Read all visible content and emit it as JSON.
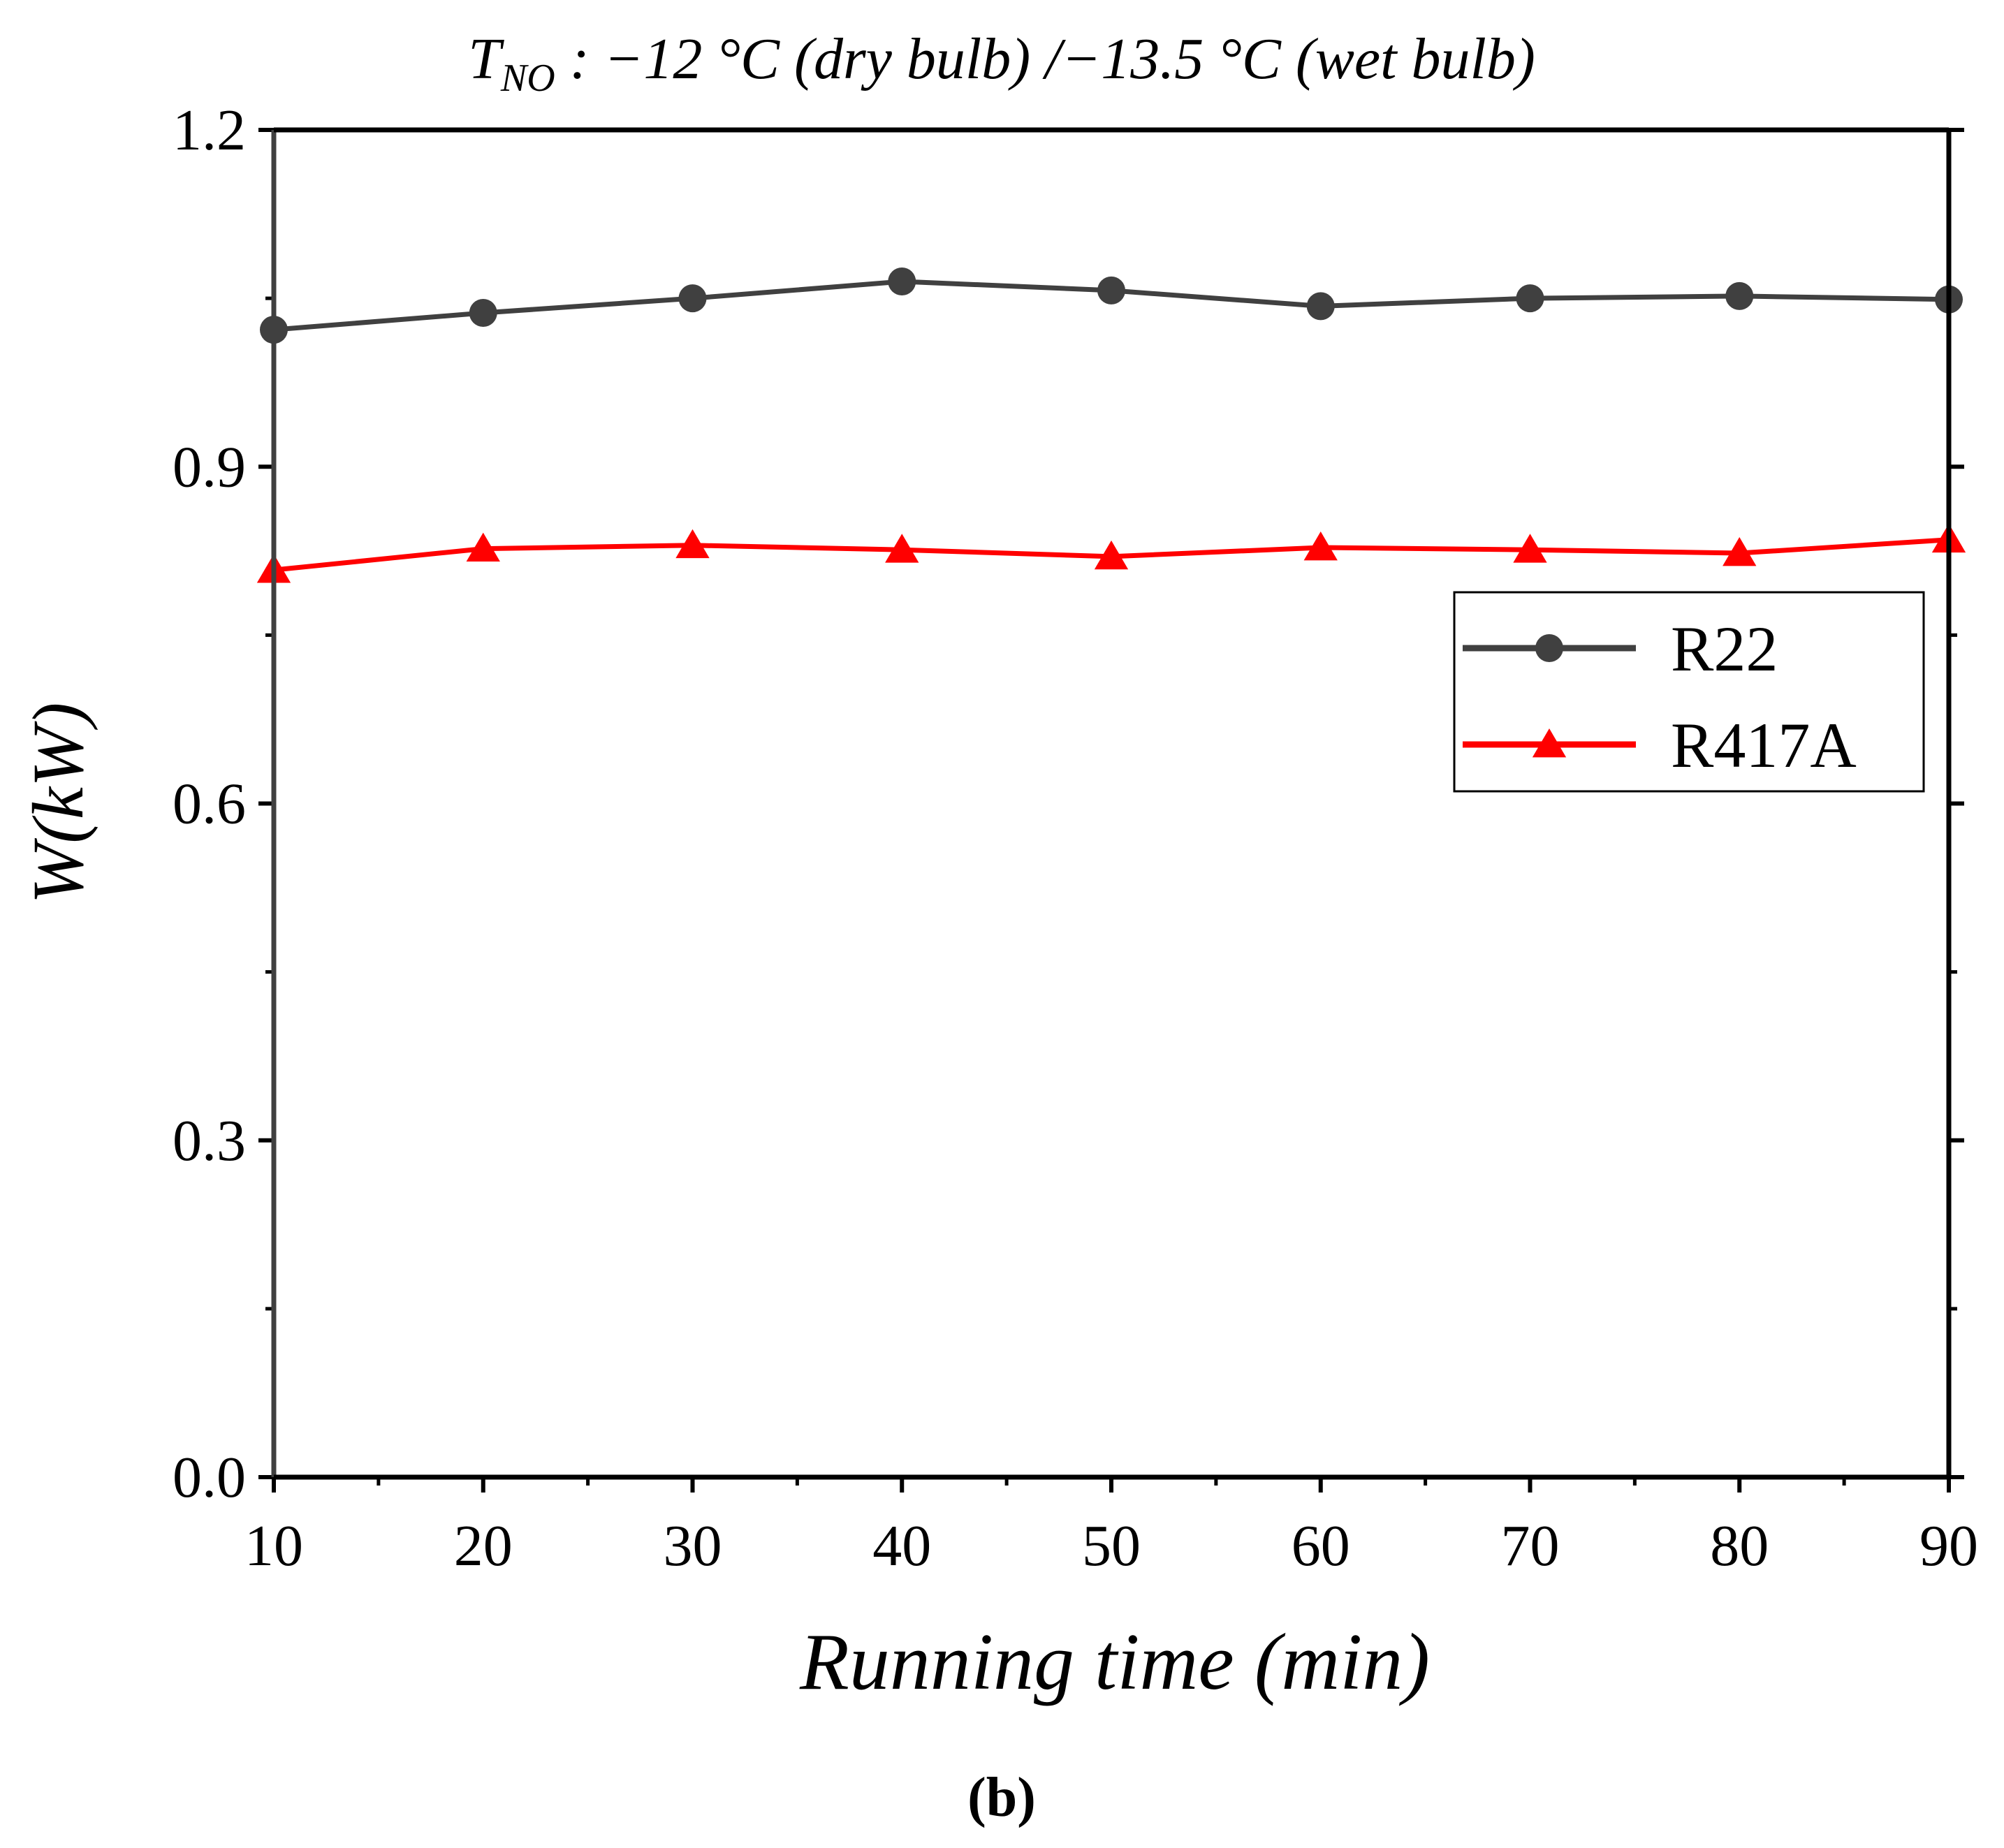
{
  "chart_data": {
    "type": "line",
    "title_parts": {
      "main": "T",
      "sub": "NO",
      "rest": " : −12 °C (dry bulb) /−13.5 °C (wet bulb)"
    },
    "xlabel": "Running time (min)",
    "ylabel": "W(kW)",
    "caption": "(b)",
    "x": [
      10,
      20,
      30,
      40,
      50,
      60,
      70,
      80,
      90
    ],
    "xlim": [
      10,
      90
    ],
    "ylim": [
      0,
      1.2
    ],
    "xticks": [
      "10",
      "20",
      "30",
      "40",
      "50",
      "60",
      "70",
      "80",
      "90"
    ],
    "yticks": [
      "0.0",
      "0.3",
      "0.6",
      "0.9",
      "1.2"
    ],
    "grid": false,
    "legend_position": "right",
    "series": [
      {
        "name": "R22",
        "marker": "circle",
        "color": "#404040",
        "values": [
          1.022,
          1.037,
          1.05,
          1.065,
          1.057,
          1.043,
          1.05,
          1.052,
          1.049
        ]
      },
      {
        "name": "R417A",
        "marker": "triangle",
        "color": "#ff0000",
        "values": [
          0.808,
          0.827,
          0.83,
          0.826,
          0.82,
          0.828,
          0.826,
          0.823,
          0.835
        ]
      }
    ]
  }
}
